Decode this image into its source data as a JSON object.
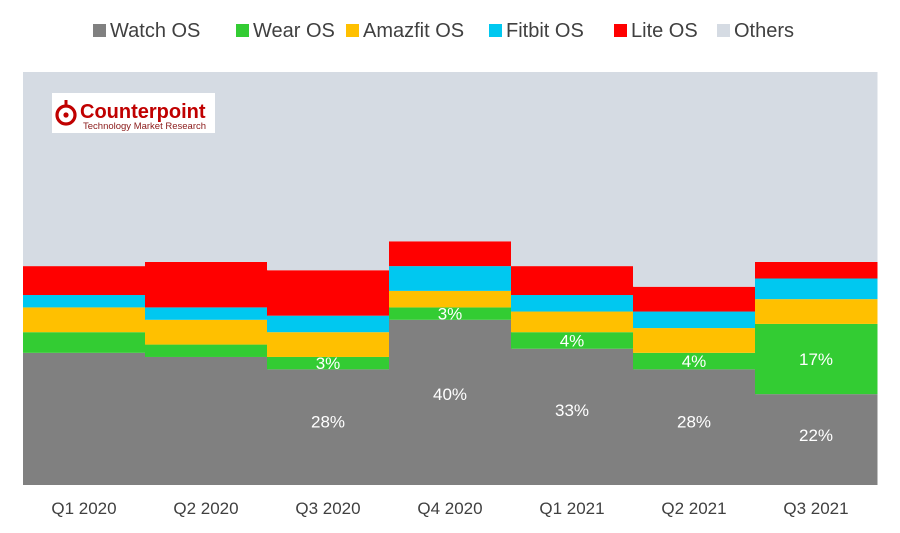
{
  "chart_data": {
    "type": "bar",
    "stacked": true,
    "bar_style": "step-columns",
    "categories": [
      "Q1 2020",
      "Q2 2020",
      "Q3 2020",
      "Q4 2020",
      "Q1 2021",
      "Q2 2021",
      "Q3 2021"
    ],
    "series": [
      {
        "name": "Watch OS",
        "color": "#808080",
        "values": [
          32,
          31,
          28,
          40,
          33,
          28,
          22
        ]
      },
      {
        "name": "Wear OS",
        "color": "#33cc33",
        "values": [
          5,
          3,
          3,
          3,
          4,
          4,
          17
        ]
      },
      {
        "name": "Amazfit OS",
        "color": "#ffc000",
        "values": [
          6,
          6,
          6,
          4,
          5,
          6,
          6
        ]
      },
      {
        "name": "Fitbit OS",
        "color": "#00c8f0",
        "values": [
          3,
          3,
          4,
          6,
          4,
          4,
          5
        ]
      },
      {
        "name": "Lite OS",
        "color": "#ff0000",
        "values": [
          7,
          11,
          11,
          6,
          7,
          6,
          4
        ]
      },
      {
        "name": "Others",
        "color": "#d5dbe3",
        "values": [
          47,
          46,
          48,
          41,
          47,
          52,
          46
        ]
      }
    ],
    "data_labels": [
      {
        "category": "Q3 2020",
        "series": "Watch OS",
        "text": "28%"
      },
      {
        "category": "Q4 2020",
        "series": "Watch OS",
        "text": "40%"
      },
      {
        "category": "Q1 2021",
        "series": "Watch OS",
        "text": "33%"
      },
      {
        "category": "Q2 2021",
        "series": "Watch OS",
        "text": "28%"
      },
      {
        "category": "Q3 2021",
        "series": "Watch OS",
        "text": "22%"
      },
      {
        "category": "Q3 2020",
        "series": "Wear OS",
        "text": "3%"
      },
      {
        "category": "Q4 2020",
        "series": "Wear OS",
        "text": "3%"
      },
      {
        "category": "Q1 2021",
        "series": "Wear OS",
        "text": "4%"
      },
      {
        "category": "Q2 2021",
        "series": "Wear OS",
        "text": "4%"
      },
      {
        "category": "Q3 2021",
        "series": "Wear OS",
        "text": "17%"
      }
    ],
    "ylim": [
      0,
      100
    ],
    "grid": false,
    "legend_position": "top",
    "title": "",
    "xlabel": "",
    "ylabel": ""
  },
  "logo": {
    "name": "Counterpoint",
    "tagline": "Technology Market Research"
  }
}
